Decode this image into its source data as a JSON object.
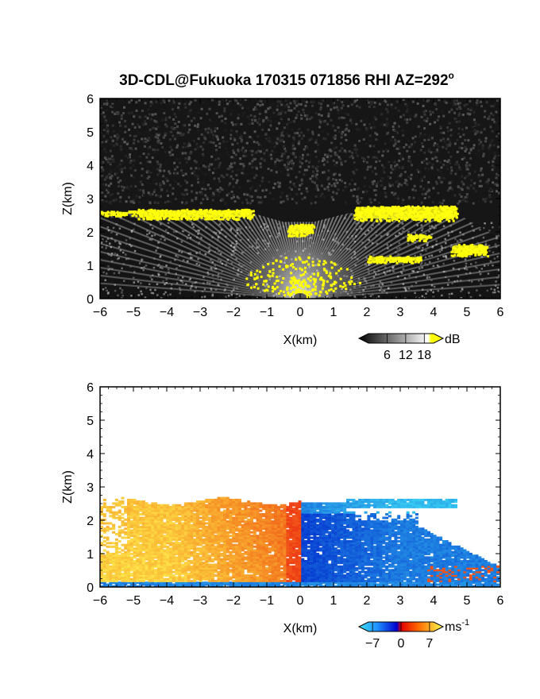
{
  "title": "3D-CDL@Fukuoka 170315 071856 RHI AZ=292",
  "title_superscript": "o",
  "chart_data": [
    {
      "type": "heatmap",
      "panel": "top",
      "field": "reflectivity",
      "xlabel": "X(km)",
      "ylabel": "Z(km)",
      "xlim": [
        -6,
        6
      ],
      "ylim": [
        0,
        6
      ],
      "xticks": [
        "-6",
        "-5",
        "-4",
        "-3",
        "-2",
        "-1",
        "0",
        "1",
        "2",
        "3",
        "4",
        "5",
        "6"
      ],
      "yticks": [
        "0",
        "1",
        "2",
        "3",
        "4",
        "5",
        "6"
      ],
      "colorbar": {
        "unit": "dB",
        "ticks": [
          "6",
          "12",
          "18"
        ],
        "range": [
          0,
          21
        ],
        "colors": [
          "#000000",
          "#ffffff",
          "#ffff00"
        ]
      },
      "features": {
        "cloud_base_km": [
          {
            "x": [
              -6.0,
              -4.8
            ],
            "z": [
              2.5,
              2.65
            ]
          },
          {
            "x": [
              -4.9,
              -1.4
            ],
            "z": [
              2.4,
              2.7
            ]
          },
          {
            "x": [
              -0.4,
              0.4
            ],
            "z": [
              1.9,
              2.25
            ]
          },
          {
            "x": [
              1.6,
              4.7
            ],
            "z": [
              2.35,
              2.8
            ]
          },
          {
            "x": [
              3.2,
              3.9
            ],
            "z": [
              1.75,
              1.95
            ]
          },
          {
            "x": [
              4.5,
              5.6
            ],
            "z": [
              1.3,
              1.65
            ]
          },
          {
            "x": [
              2.0,
              3.6
            ],
            "z": [
              1.1,
              1.3
            ]
          },
          {
            "x": [
              -1.3,
              1.2
            ],
            "z": [
              0.0,
              1.3
            ]
          }
        ]
      }
    },
    {
      "type": "heatmap",
      "panel": "bottom",
      "field": "doppler_velocity",
      "xlabel": "X(km)",
      "ylabel": "Z(km)",
      "xlim": [
        -6,
        6
      ],
      "ylim": [
        0,
        6
      ],
      "xticks": [
        "-6",
        "-5",
        "-4",
        "-3",
        "-2",
        "-1",
        "0",
        "1",
        "2",
        "3",
        "4",
        "5",
        "6"
      ],
      "yticks": [
        "0",
        "1",
        "2",
        "3",
        "4",
        "5",
        "6"
      ],
      "colorbar": {
        "unit": "ms",
        "unit_superscript": "-1",
        "ticks": [
          "-7",
          "0",
          "7"
        ],
        "range": [
          -8,
          8
        ]
      },
      "features": {
        "approaching_region_x_km": [
          -6,
          0
        ],
        "receding_region_x_km": [
          0,
          5.9
        ],
        "echo_top_km": 2.7
      }
    }
  ]
}
